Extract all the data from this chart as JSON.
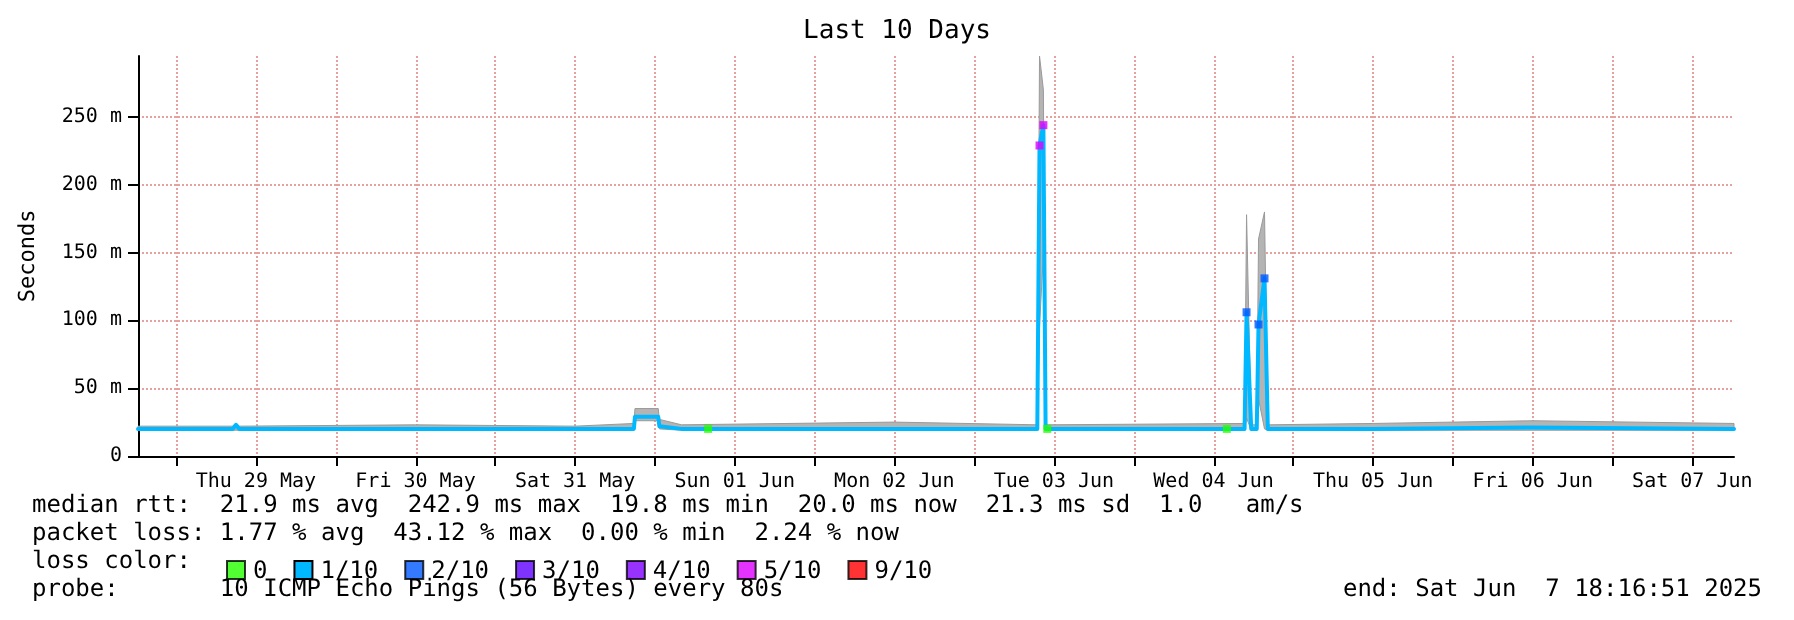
{
  "chart_data": {
    "type": "line",
    "title": "Last 10 Days",
    "ylabel": "Seconds",
    "xlim": [
      "2025-05-28T18:16",
      "2025-06-07T18:16"
    ],
    "xticks": [
      {
        "value": "2025-05-29T00:00",
        "label": null
      },
      {
        "value": "2025-05-29T12:00",
        "label": "Thu 29 May"
      },
      {
        "value": "2025-05-30T00:00",
        "label": null
      },
      {
        "value": "2025-05-30T12:00",
        "label": "Fri 30 May"
      },
      {
        "value": "2025-05-31T00:00",
        "label": null
      },
      {
        "value": "2025-05-31T12:00",
        "label": "Sat 31 May"
      },
      {
        "value": "2025-06-01T00:00",
        "label": null
      },
      {
        "value": "2025-06-01T12:00",
        "label": "Sun 01 Jun"
      },
      {
        "value": "2025-06-02T00:00",
        "label": null
      },
      {
        "value": "2025-06-02T12:00",
        "label": "Mon 02 Jun"
      },
      {
        "value": "2025-06-03T00:00",
        "label": null
      },
      {
        "value": "2025-06-03T12:00",
        "label": "Tue 03 Jun"
      },
      {
        "value": "2025-06-04T00:00",
        "label": null
      },
      {
        "value": "2025-06-04T12:00",
        "label": "Wed 04 Jun"
      },
      {
        "value": "2025-06-05T00:00",
        "label": null
      },
      {
        "value": "2025-06-05T12:00",
        "label": "Thu 05 Jun"
      },
      {
        "value": "2025-06-06T00:00",
        "label": null
      },
      {
        "value": "2025-06-06T12:00",
        "label": "Fri 06 Jun"
      },
      {
        "value": "2025-06-07T00:00",
        "label": null
      },
      {
        "value": "2025-06-07T12:00",
        "label": "Sat 07 Jun"
      }
    ],
    "ylim": [
      0,
      295
    ],
    "yticks": [
      0,
      {
        "value": 50,
        "label": "50 m"
      },
      {
        "value": 100,
        "label": "100 m"
      },
      {
        "value": 150,
        "label": "150 m"
      },
      {
        "value": 200,
        "label": "200 m"
      },
      {
        "value": 250,
        "label": "250 m"
      }
    ],
    "grid": true,
    "legend": "bottom left",
    "marker": "none",
    "series": [
      {
        "name": "0",
        "color": "#26ff00",
        "type": "scatter",
        "marker": "square",
        "x": [
          "2025-06-01T08:00",
          "2025-06-03T11:00",
          "2025-06-04T14:00"
        ],
        "values": [
          20,
          20,
          20
        ]
      },
      {
        "name": "1/10",
        "color": "#00b8ff",
        "x": [
          "2025-05-28T18:16",
          "2025-05-29T08:30",
          "2025-05-29T09:00",
          "2025-05-29T09:30",
          "2025-05-30T12:00",
          "2025-05-31T12:00",
          "2025-05-31T20:50",
          "2025-05-31T21:00",
          "2025-06-01T00:30",
          "2025-06-01T00:40",
          "2025-06-01T04:00",
          "2025-06-02T12:00",
          "2025-06-03T09:30",
          "2025-06-03T09:50",
          "2025-06-03T10:25",
          "2025-06-03T10:45",
          "2025-06-04T16:40",
          "2025-06-04T16:58",
          "2025-06-04T17:40",
          "2025-06-04T18:30",
          "2025-06-04T18:46",
          "2025-06-04T19:40",
          "2025-06-04T20:10",
          "2025-06-05T12:00",
          "2025-06-06T12:00",
          "2025-06-07T18:16"
        ],
        "values": [
          20,
          20,
          23,
          20,
          20,
          20,
          20,
          29,
          29,
          22,
          20,
          20,
          20,
          229,
          244,
          20,
          20,
          106,
          20,
          20,
          97,
          131,
          20,
          20,
          21,
          20
        ],
        "lower": [
          19,
          19,
          19,
          19,
          19,
          19,
          19,
          26,
          26,
          20,
          19,
          19,
          19,
          95,
          150,
          19,
          19,
          28,
          19,
          19,
          42,
          20,
          19,
          19,
          19,
          19
        ],
        "upper": [
          22,
          22,
          24,
          22,
          23,
          22,
          24,
          35,
          35,
          27,
          23,
          25,
          23,
          295,
          270,
          23,
          24,
          178,
          23,
          23,
          160,
          180,
          23,
          24,
          26,
          24
        ]
      },
      {
        "name": "2/10",
        "color": "#0059ff",
        "type": "scatter",
        "marker": "square",
        "x": [
          "2025-06-04T16:58",
          "2025-06-04T18:46",
          "2025-06-04T19:40"
        ],
        "values": [
          106,
          97,
          131
        ]
      },
      {
        "name": "3/10",
        "color": "#5e00ff",
        "type": "scatter",
        "marker": "square"
      },
      {
        "name": "4/10",
        "color": "#7e00ff",
        "type": "scatter",
        "marker": "square"
      },
      {
        "name": "5/10",
        "color": "#dd00ff",
        "type": "scatter",
        "marker": "square",
        "x": [
          "2025-06-03T09:50",
          "2025-06-03T10:25"
        ],
        "values": [
          229,
          244
        ]
      },
      {
        "name": "9/10",
        "color": "#ff0000",
        "type": "scatter",
        "marker": "square"
      }
    ],
    "annotations": [
      "median rtt:  21.9 ms avg  242.9 ms max  19.8 ms min  20.0 ms now  21.3 ms sd  1.0   am/s",
      "packet loss: 1.77 % avg  43.12 % max  0.00 % min  2.24 % now",
      "loss color:",
      "probe:       10 ICMP Echo Pings (56 Bytes) every 80s",
      "end: Sat Jun  7 18:16:51 2025"
    ]
  }
}
